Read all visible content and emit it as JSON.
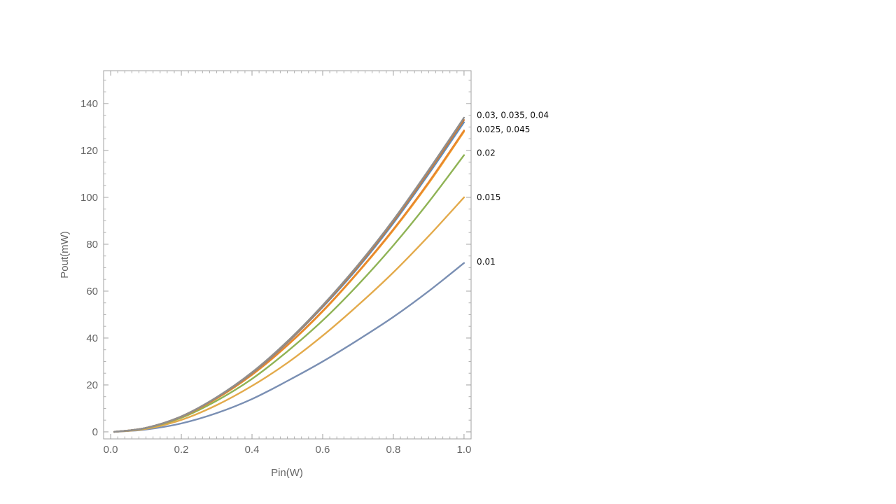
{
  "chart_data": {
    "type": "line",
    "xlabel": "Pin(W)",
    "ylabel": "Pout(mW)",
    "xlim": [
      -0.02,
      1.02
    ],
    "ylim": [
      -3,
      154
    ],
    "x_ticks": [
      "0.0",
      "0.2",
      "0.4",
      "0.6",
      "0.8",
      "1.0"
    ],
    "y_ticks": [
      "0",
      "20",
      "40",
      "60",
      "80",
      "100",
      "120",
      "140"
    ],
    "grid": false,
    "x": [
      0.01,
      0.1,
      0.2,
      0.3,
      0.4,
      0.5,
      0.6,
      0.7,
      0.8,
      0.9,
      1.0
    ],
    "series": [
      {
        "color": "#7a8fb3",
        "values": [
          0,
          1.0,
          3.6,
          8.0,
          14.0,
          21.7,
          30.0,
          39.2,
          49.0,
          60.0,
          72.0
        ]
      },
      {
        "color": "#e3aa4b",
        "values": [
          0,
          1.3,
          5.1,
          11.4,
          19.6,
          29.4,
          41.0,
          54.0,
          68.0,
          83.5,
          100.0
        ]
      },
      {
        "color": "#8fb355",
        "values": [
          0,
          1.6,
          6.0,
          13.3,
          22.6,
          34.3,
          47.5,
          62.7,
          79.5,
          98.0,
          118.0
        ]
      },
      {
        "color": "#f2a32a",
        "values": [
          0,
          1.7,
          6.4,
          14.2,
          24.3,
          36.8,
          51.3,
          67.9,
          86.0,
          106.0,
          128.0
        ]
      },
      {
        "color": "#e8862e",
        "values": [
          0,
          1.7,
          6.4,
          14.3,
          24.4,
          37.0,
          51.6,
          68.2,
          86.4,
          106.5,
          128.5
        ]
      },
      {
        "color": "#5f8fbf",
        "values": [
          0,
          1.7,
          6.5,
          14.6,
          25.0,
          38.0,
          53.2,
          70.0,
          89.0,
          110.0,
          132.0
        ]
      },
      {
        "color": "#c87a3a",
        "values": [
          0,
          1.7,
          6.6,
          14.7,
          25.2,
          38.3,
          53.6,
          70.6,
          89.7,
          110.8,
          133.0
        ]
      },
      {
        "color": "#8f8f8f",
        "values": [
          0,
          1.7,
          6.6,
          14.8,
          25.4,
          38.6,
          54.0,
          71.2,
          90.4,
          111.7,
          134.0
        ]
      }
    ],
    "annotations": [
      {
        "text": "0.03, 0.035, 0.04",
        "y": 135
      },
      {
        "text": "0.025, 0.045",
        "y": 129
      },
      {
        "text": "0.02",
        "y": 119
      },
      {
        "text": "0.015",
        "y": 100
      },
      {
        "text": "0.01",
        "y": 72.5
      }
    ]
  }
}
